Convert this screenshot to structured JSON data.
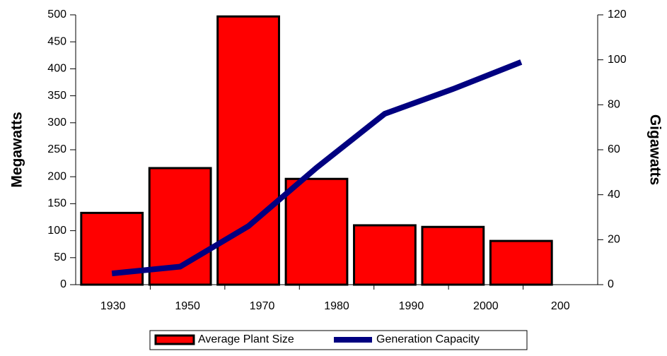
{
  "chart_data": {
    "type": "bar",
    "categories": [
      "1930",
      "1950",
      "1970",
      "1980",
      "1990",
      "2000",
      "200"
    ],
    "series": [
      {
        "name": "Average Plant Size",
        "color": "#ff0000",
        "values": [
          133,
          216,
          497,
          196,
          110,
          107,
          81
        ]
      },
      {
        "name": "Generation Capacity",
        "color": "#000080",
        "axis": "y2",
        "type": "line",
        "values": [
          5,
          8,
          26,
          52,
          76,
          87,
          99
        ]
      }
    ],
    "ylabel": "Megawatts",
    "y2label": "Gigawatts",
    "ylim": [
      0,
      500
    ],
    "yticks": [
      0,
      50,
      100,
      150,
      200,
      250,
      300,
      350,
      400,
      450,
      500
    ],
    "y2lim": [
      0,
      120
    ],
    "y2ticks": [
      0,
      20,
      40,
      60,
      80,
      100,
      120
    ],
    "legend": "bottom",
    "grid": false
  }
}
